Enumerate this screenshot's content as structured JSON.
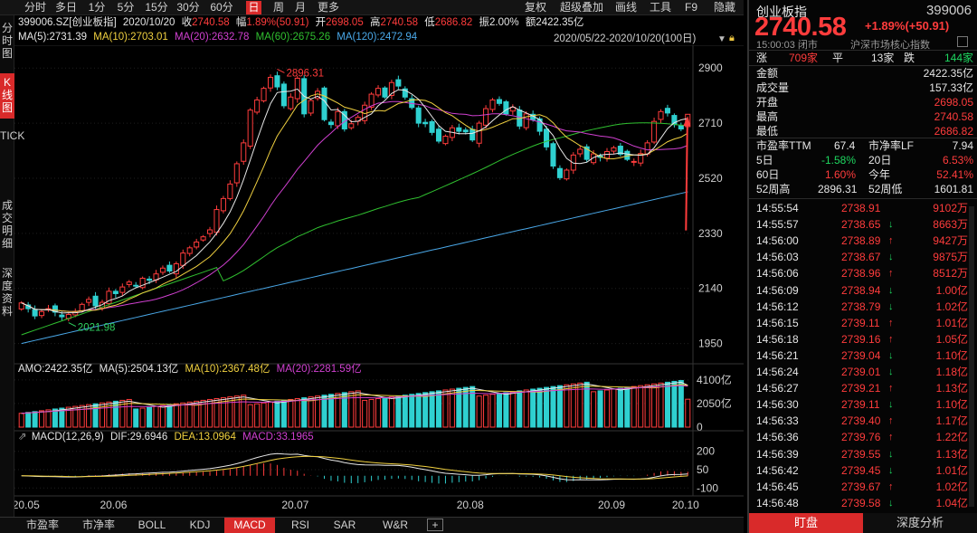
{
  "colors": {
    "up": "#ff3c3c",
    "down": "#2fd0d0",
    "ma5": "#e8e8e8",
    "ma10": "#f0d040",
    "ma20": "#d040d0",
    "ma60": "#30c030",
    "ma120": "#4aa8e8",
    "accent": "#d92a2a"
  },
  "toolbar": {
    "tabs": [
      "分时",
      "多日",
      "1分",
      "5分",
      "15分",
      "30分",
      "60分",
      "日",
      "周",
      "月",
      "更多"
    ],
    "active": "日",
    "right": [
      "复权",
      "超级叠加",
      "画线",
      "工具",
      "F9",
      "隐藏"
    ]
  },
  "side_tabs": [
    "分时图",
    "K线图",
    "TICK",
    "成交明细",
    "深度资料"
  ],
  "side_active": "K线图",
  "info": {
    "code": "399006.SZ[创业板指]",
    "date": "2020/10/20",
    "close_label": "收",
    "close": "2740.58",
    "chg_label": "幅",
    "chg": "1.89%(50.91)",
    "open_label": "开",
    "open": "2698.05",
    "high_label": "高",
    "high": "2740.58",
    "low_label": "低",
    "low": "2686.82",
    "amp_label": "振",
    "amp": "2.00%",
    "amt_label": "额",
    "amt": "2422.35亿"
  },
  "ma": {
    "ma5": "MA(5):2731.39",
    "ma10": "MA(10):2703.01",
    "ma20": "MA(20):2632.78",
    "ma60": "MA(60):2675.26",
    "ma120": "MA(120):2472.94",
    "range": "2020/05/22-2020/10/20(100日)"
  },
  "price_axis": [
    "2900",
    "2710",
    "2520",
    "2330",
    "2140",
    "1950"
  ],
  "markers": {
    "high": "2896.31",
    "low": "2021.98"
  },
  "vol": {
    "amo": "AMO:2422.35亿",
    "ma5": "MA(5):2504.13亿",
    "ma10": "MA(10):2367.48亿",
    "ma20": "MA(20):2281.59亿",
    "axis": [
      "4100亿",
      "2050亿",
      "0"
    ]
  },
  "macd": {
    "title": "MACD(12,26,9)",
    "dif": "DIF:29.6946",
    "dea": "DEA:13.0964",
    "macd": "MACD:33.1965",
    "axis": [
      "200",
      "50",
      "-100"
    ]
  },
  "dates": [
    "20.05",
    "20.06",
    "20.07",
    "20.08",
    "20.09",
    "20.10"
  ],
  "bottom_tabs": [
    "市盈率",
    "市净率",
    "BOLL",
    "KDJ",
    "MACD",
    "RSI",
    "SAR",
    "W&R",
    "+"
  ],
  "bottom_active": "MACD",
  "quote": {
    "name": "创业板指",
    "code": "399006",
    "price": "2740.58",
    "change": "+1.89%",
    "change_pts": "(+50.91)",
    "time": "15:00:03",
    "status": "闭市",
    "market": "沪深市场核心指数",
    "breadth": {
      "up_label": "涨",
      "up": "709家",
      "flat_label": "平",
      "flat": "13家",
      "down_label": "跌",
      "down": "144家"
    },
    "stats": [
      {
        "label": "金额",
        "value": "2422.35亿",
        "cls": "w"
      },
      {
        "label": "成交量",
        "value": "157.33亿",
        "cls": "w"
      },
      {
        "label": "开盘",
        "value": "2698.05",
        "cls": "r"
      },
      {
        "label": "最高",
        "value": "2740.58",
        "cls": "r"
      },
      {
        "label": "最低",
        "value": "2686.82",
        "cls": "r"
      }
    ],
    "pe_label": "市盈率TTM",
    "pe": "67.4",
    "pb_label": "市净率LF",
    "pb": "7.94",
    "perf": [
      {
        "l1": "5日",
        "v1": "-1.58%",
        "c1": "g",
        "l2": "20日",
        "v2": "6.53%",
        "c2": "r"
      },
      {
        "l1": "60日",
        "v1": "1.60%",
        "c1": "r",
        "l2": "今年",
        "v2": "52.41%",
        "c2": "r"
      }
    ],
    "w52h_label": "52周高",
    "w52h": "2896.31",
    "w52l_label": "52周低",
    "w52l": "1601.81"
  },
  "ticks": [
    {
      "t": "14:55:54",
      "p": "2738.91",
      "d": "",
      "v": "9102万"
    },
    {
      "t": "14:55:57",
      "p": "2738.65",
      "d": "↓",
      "v": "8663万"
    },
    {
      "t": "14:56:00",
      "p": "2738.89",
      "d": "↑",
      "v": "9427万"
    },
    {
      "t": "14:56:03",
      "p": "2738.67",
      "d": "↓",
      "v": "9875万"
    },
    {
      "t": "14:56:06",
      "p": "2738.96",
      "d": "↑",
      "v": "8512万"
    },
    {
      "t": "14:56:09",
      "p": "2738.94",
      "d": "↓",
      "v": "1.00亿"
    },
    {
      "t": "14:56:12",
      "p": "2738.79",
      "d": "↓",
      "v": "1.02亿"
    },
    {
      "t": "14:56:15",
      "p": "2739.11",
      "d": "↑",
      "v": "1.01亿"
    },
    {
      "t": "14:56:18",
      "p": "2739.16",
      "d": "↑",
      "v": "1.05亿"
    },
    {
      "t": "14:56:21",
      "p": "2739.04",
      "d": "↓",
      "v": "1.10亿"
    },
    {
      "t": "14:56:24",
      "p": "2739.01",
      "d": "↓",
      "v": "1.18亿"
    },
    {
      "t": "14:56:27",
      "p": "2739.21",
      "d": "↑",
      "v": "1.13亿"
    },
    {
      "t": "14:56:30",
      "p": "2739.11",
      "d": "↓",
      "v": "1.10亿"
    },
    {
      "t": "14:56:33",
      "p": "2739.40",
      "d": "↑",
      "v": "1.17亿"
    },
    {
      "t": "14:56:36",
      "p": "2739.76",
      "d": "↑",
      "v": "1.22亿"
    },
    {
      "t": "14:56:39",
      "p": "2739.55",
      "d": "↓",
      "v": "1.13亿"
    },
    {
      "t": "14:56:42",
      "p": "2739.45",
      "d": "↓",
      "v": "1.01亿"
    },
    {
      "t": "14:56:45",
      "p": "2739.67",
      "d": "↑",
      "v": "1.02亿"
    },
    {
      "t": "14:56:48",
      "p": "2739.58",
      "d": "↓",
      "v": "1.04亿"
    }
  ],
  "right_tabs": [
    "盯盘",
    "深度分析"
  ],
  "chart_data": {
    "type": "candlestick",
    "title": "399006.SZ[创业板指] 日K",
    "period": "2020/05/22-2020/10/20(100日)",
    "ylim": [
      1880,
      2960
    ],
    "y_ticks": [
      2900,
      2710,
      2520,
      2330,
      2140,
      1950
    ],
    "x_ticks": [
      "20.05",
      "20.06",
      "20.07",
      "20.08",
      "20.09",
      "20.10"
    ],
    "high_point": 2896.31,
    "low_point": 2021.98,
    "last": {
      "date": "2020/10/20",
      "open": 2698.05,
      "high": 2740.58,
      "low": 2686.82,
      "close": 2740.58,
      "amount_yi": 2422.35
    },
    "closes": [
      2090,
      2070,
      2045,
      2060,
      2070,
      2058,
      2042,
      2050,
      2060,
      2085,
      2102,
      2080,
      2092,
      2130,
      2122,
      2145,
      2162,
      2150,
      2175,
      2168,
      2190,
      2210,
      2200,
      2225,
      2262,
      2280,
      2300,
      2318,
      2342,
      2412,
      2450,
      2500,
      2570,
      2642,
      2755,
      2790,
      2830,
      2868,
      2835,
      2770,
      2800,
      2865,
      2742,
      2788,
      2820,
      2722,
      2705,
      2750,
      2690,
      2708,
      2730,
      2772,
      2810,
      2830,
      2800,
      2850,
      2838,
      2800,
      2764,
      2710,
      2708,
      2678,
      2648,
      2665,
      2694,
      2682,
      2680,
      2652,
      2710,
      2760,
      2790,
      2778,
      2742,
      2765,
      2700,
      2742,
      2722,
      2682,
      2628,
      2562,
      2522,
      2548,
      2600,
      2620,
      2585,
      2604,
      2592,
      2612,
      2625,
      2603,
      2585,
      2578,
      2605,
      2642,
      2716,
      2750,
      2745,
      2705,
      2690,
      2740.58
    ],
    "ma_values": {
      "MA5": 2731.39,
      "MA10": 2703.01,
      "MA20": 2632.78,
      "MA60": 2675.26,
      "MA120": 2472.94
    },
    "volume": {
      "AMO_yi": 2422.35,
      "MA5_yi": 2504.13,
      "MA10_yi": 2367.48,
      "MA20_yi": 2281.59,
      "ylim": [
        0,
        4400
      ]
    },
    "macd": {
      "DIF": 29.6946,
      "DEA": 13.0964,
      "MACD": 33.1965,
      "ylim": [
        -120,
        220
      ]
    }
  }
}
